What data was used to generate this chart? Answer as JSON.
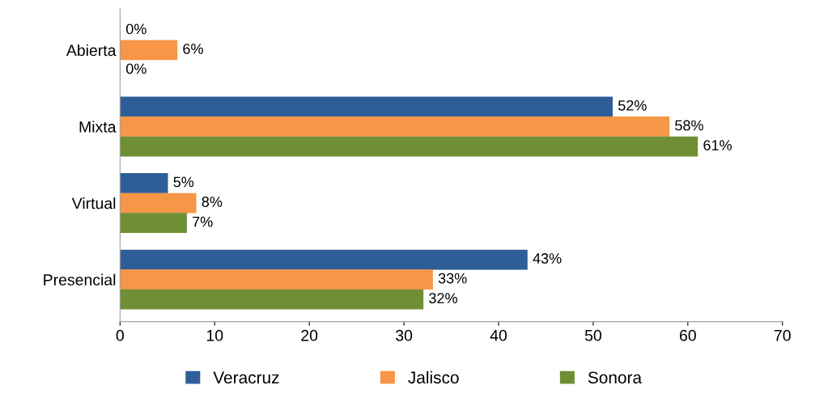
{
  "chart_data": {
    "type": "bar",
    "orientation": "horizontal",
    "categories": [
      "Abierta",
      "Mixta",
      "Virtual",
      "Presencial"
    ],
    "series": [
      {
        "name": "Veracruz",
        "color": "#2f5d98",
        "values": [
          0,
          52,
          5,
          43
        ],
        "value_labels": [
          "0%",
          "52%",
          "5%",
          "43%"
        ]
      },
      {
        "name": "Jalisco",
        "color": "#f79646",
        "values": [
          6,
          58,
          8,
          33
        ],
        "value_labels": [
          "6%",
          "58%",
          "8%",
          "33%"
        ]
      },
      {
        "name": "Sonora",
        "color": "#6f8f34",
        "values": [
          0,
          61,
          7,
          32
        ],
        "value_labels": [
          "0%",
          "61%",
          "7%",
          "32%"
        ]
      }
    ],
    "xlim": [
      0,
      70
    ],
    "xticks": [
      0,
      10,
      20,
      30,
      40,
      50,
      60,
      70
    ],
    "grid": false,
    "legend": "bottom"
  }
}
